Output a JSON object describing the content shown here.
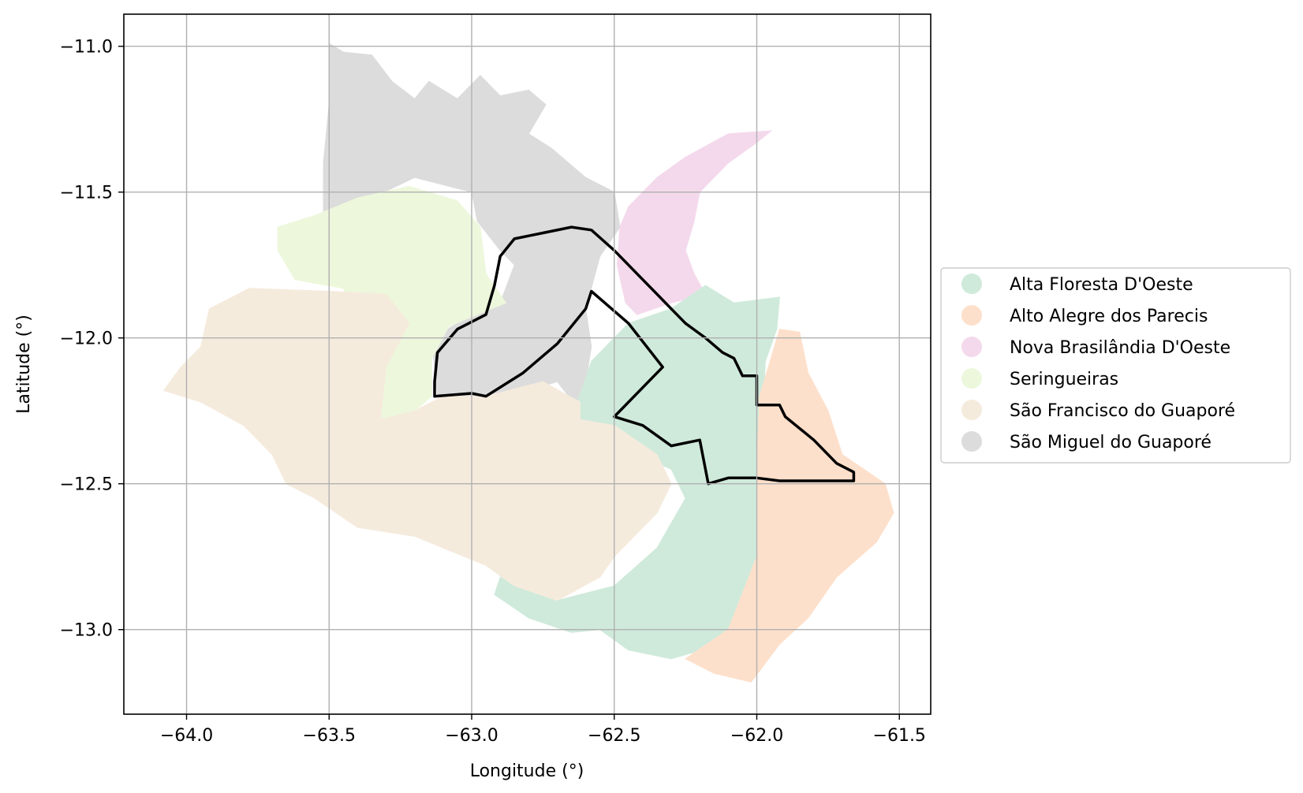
{
  "chart_data": {
    "type": "map",
    "xlabel": "Longitude (°)",
    "ylabel": "Latitude (°)",
    "xlim": [
      -64.22,
      -61.39
    ],
    "ylim": [
      -13.29,
      -10.89
    ],
    "xticks": [
      -64.0,
      -63.5,
      -63.0,
      -62.5,
      -62.0,
      -61.5
    ],
    "yticks": [
      -11.0,
      -11.5,
      -12.0,
      -12.5,
      -13.0
    ],
    "xtick_labels": [
      "−64.0",
      "−63.5",
      "−63.0",
      "−62.5",
      "−62.0",
      "−61.5"
    ],
    "ytick_labels": [
      "−11.0",
      "−11.5",
      "−12.0",
      "−12.5",
      "−13.0"
    ],
    "grid": true,
    "legend_position": "right",
    "regions": [
      {
        "name": "São Miguel do Guaporé",
        "color": "#dcdcdc",
        "coords": [
          [
            -63.5,
            -10.99
          ],
          [
            -63.45,
            -11.02
          ],
          [
            -63.35,
            -11.03
          ],
          [
            -63.28,
            -11.12
          ],
          [
            -63.2,
            -11.18
          ],
          [
            -63.15,
            -11.12
          ],
          [
            -63.05,
            -11.18
          ],
          [
            -62.97,
            -11.1
          ],
          [
            -62.9,
            -11.17
          ],
          [
            -62.8,
            -11.15
          ],
          [
            -62.74,
            -11.2
          ],
          [
            -62.8,
            -11.3
          ],
          [
            -62.72,
            -11.35
          ],
          [
            -62.6,
            -11.45
          ],
          [
            -62.5,
            -11.5
          ],
          [
            -62.48,
            -11.62
          ],
          [
            -62.55,
            -11.72
          ],
          [
            -62.6,
            -11.9
          ],
          [
            -62.58,
            -12.03
          ],
          [
            -62.6,
            -12.15
          ],
          [
            -62.62,
            -12.25
          ],
          [
            -62.7,
            -12.15
          ],
          [
            -62.8,
            -12.18
          ],
          [
            -62.95,
            -12.2
          ],
          [
            -63.12,
            -12.2
          ],
          [
            -63.14,
            -12.0
          ],
          [
            -63.05,
            -11.95
          ],
          [
            -62.9,
            -11.88
          ],
          [
            -62.85,
            -11.75
          ],
          [
            -62.9,
            -11.7
          ],
          [
            -62.98,
            -11.6
          ],
          [
            -63.0,
            -11.5
          ],
          [
            -63.2,
            -11.45
          ],
          [
            -63.35,
            -11.52
          ],
          [
            -63.52,
            -11.6
          ],
          [
            -63.52,
            -11.4
          ],
          [
            -63.5,
            -11.2
          ]
        ]
      },
      {
        "name": "Nova Brasilândia D'Oeste",
        "color": "#f4d9ec",
        "coords": [
          [
            -61.95,
            -11.29
          ],
          [
            -62.0,
            -11.33
          ],
          [
            -62.1,
            -11.4
          ],
          [
            -62.2,
            -11.5
          ],
          [
            -62.22,
            -11.6
          ],
          [
            -62.25,
            -11.7
          ],
          [
            -62.22,
            -11.78
          ],
          [
            -62.18,
            -11.85
          ],
          [
            -62.3,
            -11.88
          ],
          [
            -62.42,
            -11.92
          ],
          [
            -62.46,
            -11.88
          ],
          [
            -62.49,
            -11.75
          ],
          [
            -62.48,
            -11.62
          ],
          [
            -62.45,
            -11.55
          ],
          [
            -62.35,
            -11.45
          ],
          [
            -62.25,
            -11.38
          ],
          [
            -62.1,
            -11.3
          ]
        ]
      },
      {
        "name": "Seringueiras",
        "color": "#edf7dc",
        "coords": [
          [
            -63.68,
            -11.62
          ],
          [
            -63.55,
            -11.58
          ],
          [
            -63.4,
            -11.52
          ],
          [
            -63.22,
            -11.48
          ],
          [
            -63.05,
            -11.53
          ],
          [
            -62.97,
            -11.62
          ],
          [
            -62.95,
            -11.78
          ],
          [
            -62.88,
            -11.88
          ],
          [
            -63.08,
            -11.96
          ],
          [
            -63.14,
            -12.07
          ],
          [
            -63.14,
            -12.2
          ],
          [
            -63.2,
            -12.25
          ],
          [
            -63.32,
            -12.3
          ],
          [
            -63.33,
            -12.05
          ],
          [
            -63.4,
            -11.95
          ],
          [
            -63.45,
            -11.83
          ],
          [
            -63.62,
            -11.8
          ],
          [
            -63.68,
            -11.7
          ]
        ]
      },
      {
        "name": "Alta Floresta D'Oeste",
        "color": "#cfeadb",
        "coords": [
          [
            -62.18,
            -11.82
          ],
          [
            -62.08,
            -11.88
          ],
          [
            -61.92,
            -11.86
          ],
          [
            -61.93,
            -11.97
          ],
          [
            -61.97,
            -12.08
          ],
          [
            -61.98,
            -12.3
          ],
          [
            -62.0,
            -12.5
          ],
          [
            -62.0,
            -12.72
          ],
          [
            -62.02,
            -12.9
          ],
          [
            -62.12,
            -13.05
          ],
          [
            -62.3,
            -13.1
          ],
          [
            -62.45,
            -13.07
          ],
          [
            -62.55,
            -13.0
          ],
          [
            -62.65,
            -13.01
          ],
          [
            -62.8,
            -12.96
          ],
          [
            -62.92,
            -12.88
          ],
          [
            -62.9,
            -12.82
          ],
          [
            -62.7,
            -12.9
          ],
          [
            -62.5,
            -12.85
          ],
          [
            -62.35,
            -12.72
          ],
          [
            -62.25,
            -12.55
          ],
          [
            -62.3,
            -12.45
          ],
          [
            -62.55,
            -12.35
          ],
          [
            -62.65,
            -12.28
          ],
          [
            -62.58,
            -12.08
          ],
          [
            -62.45,
            -11.95
          ],
          [
            -62.3,
            -11.9
          ]
        ]
      },
      {
        "name": "Alto Alegre dos Parecis",
        "color": "#fde0cb",
        "coords": [
          [
            -61.92,
            -11.97
          ],
          [
            -61.85,
            -11.98
          ],
          [
            -61.82,
            -12.12
          ],
          [
            -61.75,
            -12.25
          ],
          [
            -61.7,
            -12.4
          ],
          [
            -61.55,
            -12.5
          ],
          [
            -61.52,
            -12.6
          ],
          [
            -61.58,
            -12.7
          ],
          [
            -61.72,
            -12.82
          ],
          [
            -61.82,
            -12.96
          ],
          [
            -61.92,
            -13.05
          ],
          [
            -62.02,
            -13.18
          ],
          [
            -62.15,
            -13.15
          ],
          [
            -62.25,
            -13.1
          ],
          [
            -62.1,
            -13.0
          ],
          [
            -62.0,
            -12.75
          ],
          [
            -62.0,
            -12.45
          ],
          [
            -61.99,
            -12.2
          ]
        ]
      },
      {
        "name": "São Francisco do Guaporé",
        "color": "#f5ebdd",
        "coords": [
          [
            -64.08,
            -12.18
          ],
          [
            -64.02,
            -12.1
          ],
          [
            -63.95,
            -12.03
          ],
          [
            -63.92,
            -11.9
          ],
          [
            -63.78,
            -11.83
          ],
          [
            -63.5,
            -11.84
          ],
          [
            -63.3,
            -11.85
          ],
          [
            -63.22,
            -11.95
          ],
          [
            -63.3,
            -12.1
          ],
          [
            -63.32,
            -12.28
          ],
          [
            -63.2,
            -12.25
          ],
          [
            -63.1,
            -12.2
          ],
          [
            -62.95,
            -12.2
          ],
          [
            -62.75,
            -12.15
          ],
          [
            -62.62,
            -12.22
          ],
          [
            -62.62,
            -12.28
          ],
          [
            -62.5,
            -12.3
          ],
          [
            -62.35,
            -12.4
          ],
          [
            -62.3,
            -12.5
          ],
          [
            -62.35,
            -12.6
          ],
          [
            -62.5,
            -12.75
          ],
          [
            -62.55,
            -12.82
          ],
          [
            -62.7,
            -12.9
          ],
          [
            -62.85,
            -12.85
          ],
          [
            -62.95,
            -12.78
          ],
          [
            -63.1,
            -12.72
          ],
          [
            -63.2,
            -12.68
          ],
          [
            -63.4,
            -12.65
          ],
          [
            -63.55,
            -12.55
          ],
          [
            -63.65,
            -12.5
          ],
          [
            -63.7,
            -12.4
          ],
          [
            -63.8,
            -12.3
          ],
          [
            -63.95,
            -12.22
          ]
        ]
      }
    ],
    "highlight": {
      "color": "#000000",
      "coords": [
        [
          -63.13,
          -12.2
        ],
        [
          -63.0,
          -12.19
        ],
        [
          -62.95,
          -12.2
        ],
        [
          -62.82,
          -12.12
        ],
        [
          -62.7,
          -12.02
        ],
        [
          -62.6,
          -11.9
        ],
        [
          -62.58,
          -11.84
        ],
        [
          -62.45,
          -11.95
        ],
        [
          -62.33,
          -12.1
        ],
        [
          -62.5,
          -12.27
        ],
        [
          -62.4,
          -12.3
        ],
        [
          -62.3,
          -12.37
        ],
        [
          -62.2,
          -12.35
        ],
        [
          -62.17,
          -12.5
        ],
        [
          -62.1,
          -12.48
        ],
        [
          -62.0,
          -12.48
        ],
        [
          -61.92,
          -12.49
        ],
        [
          -61.66,
          -12.49
        ],
        [
          -61.66,
          -12.46
        ],
        [
          -61.72,
          -12.43
        ],
        [
          -61.8,
          -12.35
        ],
        [
          -61.9,
          -12.27
        ],
        [
          -61.92,
          -12.23
        ],
        [
          -62.0,
          -12.23
        ],
        [
          -62.0,
          -12.13
        ],
        [
          -62.05,
          -12.13
        ],
        [
          -62.08,
          -12.07
        ],
        [
          -62.12,
          -12.05
        ],
        [
          -62.18,
          -12.0
        ],
        [
          -62.25,
          -11.95
        ],
        [
          -62.3,
          -11.9
        ],
        [
          -62.35,
          -11.85
        ],
        [
          -62.42,
          -11.78
        ],
        [
          -62.5,
          -11.7
        ],
        [
          -62.58,
          -11.63
        ],
        [
          -62.65,
          -11.62
        ],
        [
          -62.75,
          -11.64
        ],
        [
          -62.8,
          -11.65
        ],
        [
          -62.85,
          -11.66
        ],
        [
          -62.9,
          -11.72
        ],
        [
          -62.92,
          -11.82
        ],
        [
          -62.95,
          -11.92
        ],
        [
          -63.05,
          -11.97
        ],
        [
          -63.12,
          -12.05
        ],
        [
          -63.13,
          -12.15
        ]
      ]
    }
  },
  "legend": {
    "items": [
      {
        "label": "Alta Floresta D'Oeste",
        "color": "#cfeadb"
      },
      {
        "label": "Alto Alegre dos Parecis",
        "color": "#fde0cb"
      },
      {
        "label": "Nova Brasilândia D'Oeste",
        "color": "#f4d9ec"
      },
      {
        "label": "Seringueiras",
        "color": "#edf7dc"
      },
      {
        "label": "São Francisco do Guaporé",
        "color": "#f5ebdd"
      },
      {
        "label": "São Miguel do Guaporé",
        "color": "#dcdcdc"
      }
    ]
  }
}
